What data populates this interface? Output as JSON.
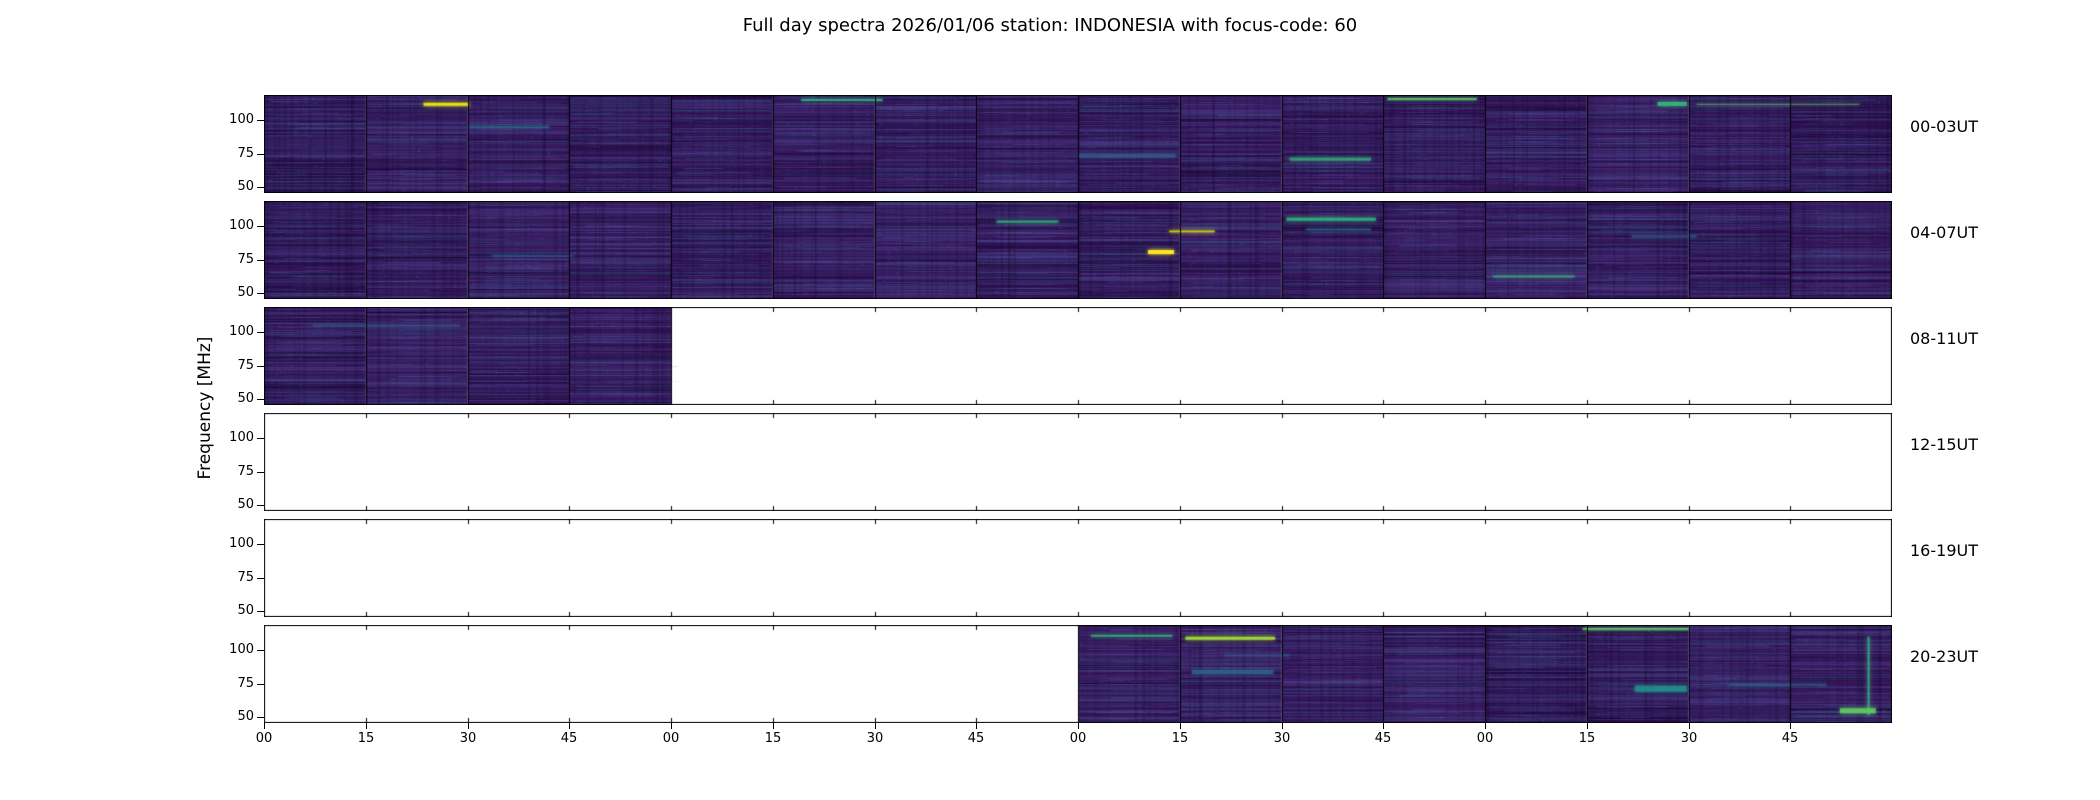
{
  "chart_data": {
    "type": "heatmap",
    "title": "Full day spectra 2026/01/06 station: INDONESIA with focus-code: 60",
    "station": "INDONESIA",
    "date": "2026/01/06",
    "focus_code": "60",
    "ylabel": "Frequency [MHz]",
    "colormap": "viridis",
    "y_ticks": [
      "100",
      "75",
      "50"
    ],
    "x_tick_labels": [
      "00",
      "15",
      "30",
      "45",
      "00",
      "15",
      "30",
      "45",
      "00",
      "15",
      "30",
      "45",
      "00",
      "15",
      "30",
      "45"
    ],
    "segments_per_row": 16,
    "segment_minutes": 15,
    "row_duration_hours": 4,
    "rows": [
      {
        "label": "00-03UT",
        "filled": [
          1,
          1,
          1,
          1,
          1,
          1,
          1,
          1,
          1,
          1,
          1,
          1,
          1,
          1,
          1,
          1
        ]
      },
      {
        "label": "04-07UT",
        "filled": [
          1,
          1,
          1,
          1,
          1,
          1,
          1,
          1,
          1,
          1,
          1,
          1,
          1,
          1,
          1,
          1
        ]
      },
      {
        "label": "08-11UT",
        "filled": [
          1,
          1,
          1,
          1,
          0,
          0,
          0,
          0,
          0,
          0,
          0,
          0,
          0,
          0,
          0,
          0
        ]
      },
      {
        "label": "12-15UT",
        "filled": [
          0,
          0,
          0,
          0,
          0,
          0,
          0,
          0,
          0,
          0,
          0,
          0,
          0,
          0,
          0,
          0
        ]
      },
      {
        "label": "16-19UT",
        "filled": [
          0,
          0,
          0,
          0,
          0,
          0,
          0,
          0,
          0,
          0,
          0,
          0,
          0,
          0,
          0,
          0
        ]
      },
      {
        "label": "20-23UT",
        "filled": [
          0,
          0,
          0,
          0,
          0,
          0,
          0,
          0,
          1,
          1,
          1,
          1,
          1,
          1,
          1,
          1
        ]
      }
    ],
    "colors": {
      "spectrogram_base": "#341659",
      "band_purple": "#46327e",
      "band_blue": "#365c8d",
      "band_teal": "#2a788e",
      "bright_green": "#35b779",
      "bright_yellow": "#fde725",
      "empty_panel": "#ffffff",
      "frame": "#000000"
    },
    "features": [
      {
        "row": 0,
        "x_frac": 0.098,
        "y_frac": 0.08,
        "len_frac": 0.028,
        "color": "#e5e419",
        "thickness": 3,
        "alpha": 0.95
      },
      {
        "row": 0,
        "x_frac": 0.125,
        "y_frac": 0.32,
        "len_frac": 0.05,
        "color": "#2a788e",
        "thickness": 2,
        "alpha": 0.7
      },
      {
        "row": 0,
        "x_frac": 0.33,
        "y_frac": 0.04,
        "len_frac": 0.05,
        "color": "#35b779",
        "thickness": 2,
        "alpha": 0.85
      },
      {
        "row": 0,
        "x_frac": 0.5,
        "y_frac": 0.6,
        "len_frac": 0.06,
        "color": "#31688e",
        "thickness": 4,
        "alpha": 0.55
      },
      {
        "row": 0,
        "x_frac": 0.63,
        "y_frac": 0.64,
        "len_frac": 0.05,
        "color": "#35b779",
        "thickness": 3,
        "alpha": 0.7
      },
      {
        "row": 0,
        "x_frac": 0.69,
        "y_frac": 0.03,
        "len_frac": 0.055,
        "color": "#5ec962",
        "thickness": 2,
        "alpha": 0.9
      },
      {
        "row": 0,
        "x_frac": 0.856,
        "y_frac": 0.07,
        "len_frac": 0.018,
        "color": "#35b779",
        "thickness": 4,
        "alpha": 0.9
      },
      {
        "row": 0,
        "x_frac": 0.88,
        "y_frac": 0.09,
        "len_frac": 0.1,
        "color": "#5ec962",
        "thickness": 1,
        "alpha": 0.7
      },
      {
        "row": 1,
        "x_frac": 0.14,
        "y_frac": 0.55,
        "len_frac": 0.05,
        "color": "#31688e",
        "thickness": 2,
        "alpha": 0.5
      },
      {
        "row": 1,
        "x_frac": 0.45,
        "y_frac": 0.2,
        "len_frac": 0.038,
        "color": "#35b779",
        "thickness": 2,
        "alpha": 0.85
      },
      {
        "row": 1,
        "x_frac": 0.543,
        "y_frac": 0.5,
        "len_frac": 0.016,
        "color": "#fde725",
        "thickness": 4,
        "alpha": 1.0
      },
      {
        "row": 1,
        "x_frac": 0.556,
        "y_frac": 0.3,
        "len_frac": 0.028,
        "color": "#d8e219",
        "thickness": 2,
        "alpha": 0.8
      },
      {
        "row": 1,
        "x_frac": 0.628,
        "y_frac": 0.17,
        "len_frac": 0.055,
        "color": "#35b779",
        "thickness": 3,
        "alpha": 0.85
      },
      {
        "row": 1,
        "x_frac": 0.64,
        "y_frac": 0.28,
        "len_frac": 0.04,
        "color": "#2a788e",
        "thickness": 2,
        "alpha": 0.6
      },
      {
        "row": 1,
        "x_frac": 0.755,
        "y_frac": 0.76,
        "len_frac": 0.05,
        "color": "#35b779",
        "thickness": 2,
        "alpha": 0.7
      },
      {
        "row": 1,
        "x_frac": 0.84,
        "y_frac": 0.35,
        "len_frac": 0.04,
        "color": "#2a788e",
        "thickness": 2,
        "alpha": 0.55
      },
      {
        "row": 2,
        "x_frac": 0.03,
        "y_frac": 0.18,
        "len_frac": 0.09,
        "color": "#31688e",
        "thickness": 2,
        "alpha": 0.5
      },
      {
        "row": 5,
        "x_frac": 0.508,
        "y_frac": 0.1,
        "len_frac": 0.05,
        "color": "#35b779",
        "thickness": 2,
        "alpha": 0.8
      },
      {
        "row": 5,
        "x_frac": 0.566,
        "y_frac": 0.12,
        "len_frac": 0.055,
        "color": "#9fda3a",
        "thickness": 3,
        "alpha": 0.95
      },
      {
        "row": 5,
        "x_frac": 0.57,
        "y_frac": 0.46,
        "len_frac": 0.05,
        "color": "#2a788e",
        "thickness": 4,
        "alpha": 0.6
      },
      {
        "row": 5,
        "x_frac": 0.59,
        "y_frac": 0.3,
        "len_frac": 0.04,
        "color": "#31688e",
        "thickness": 2,
        "alpha": 0.5
      },
      {
        "row": 5,
        "x_frac": 0.81,
        "y_frac": 0.03,
        "len_frac": 0.065,
        "color": "#5ec962",
        "thickness": 2,
        "alpha": 0.9
      },
      {
        "row": 5,
        "x_frac": 0.842,
        "y_frac": 0.62,
        "len_frac": 0.032,
        "color": "#21918c",
        "thickness": 6,
        "alpha": 0.8
      },
      {
        "row": 5,
        "x_frac": 0.9,
        "y_frac": 0.6,
        "len_frac": 0.06,
        "color": "#2a788e",
        "thickness": 2,
        "alpha": 0.5
      },
      {
        "row": 5,
        "x_frac": 0.985,
        "y_frac": 0.12,
        "len_frac": 0.8,
        "color": "#35b779",
        "thickness": 2,
        "alpha": 0.8,
        "vertical": true
      },
      {
        "row": 5,
        "x_frac": 0.968,
        "y_frac": 0.85,
        "len_frac": 0.022,
        "color": "#5ec962",
        "thickness": 5,
        "alpha": 0.9
      }
    ]
  }
}
